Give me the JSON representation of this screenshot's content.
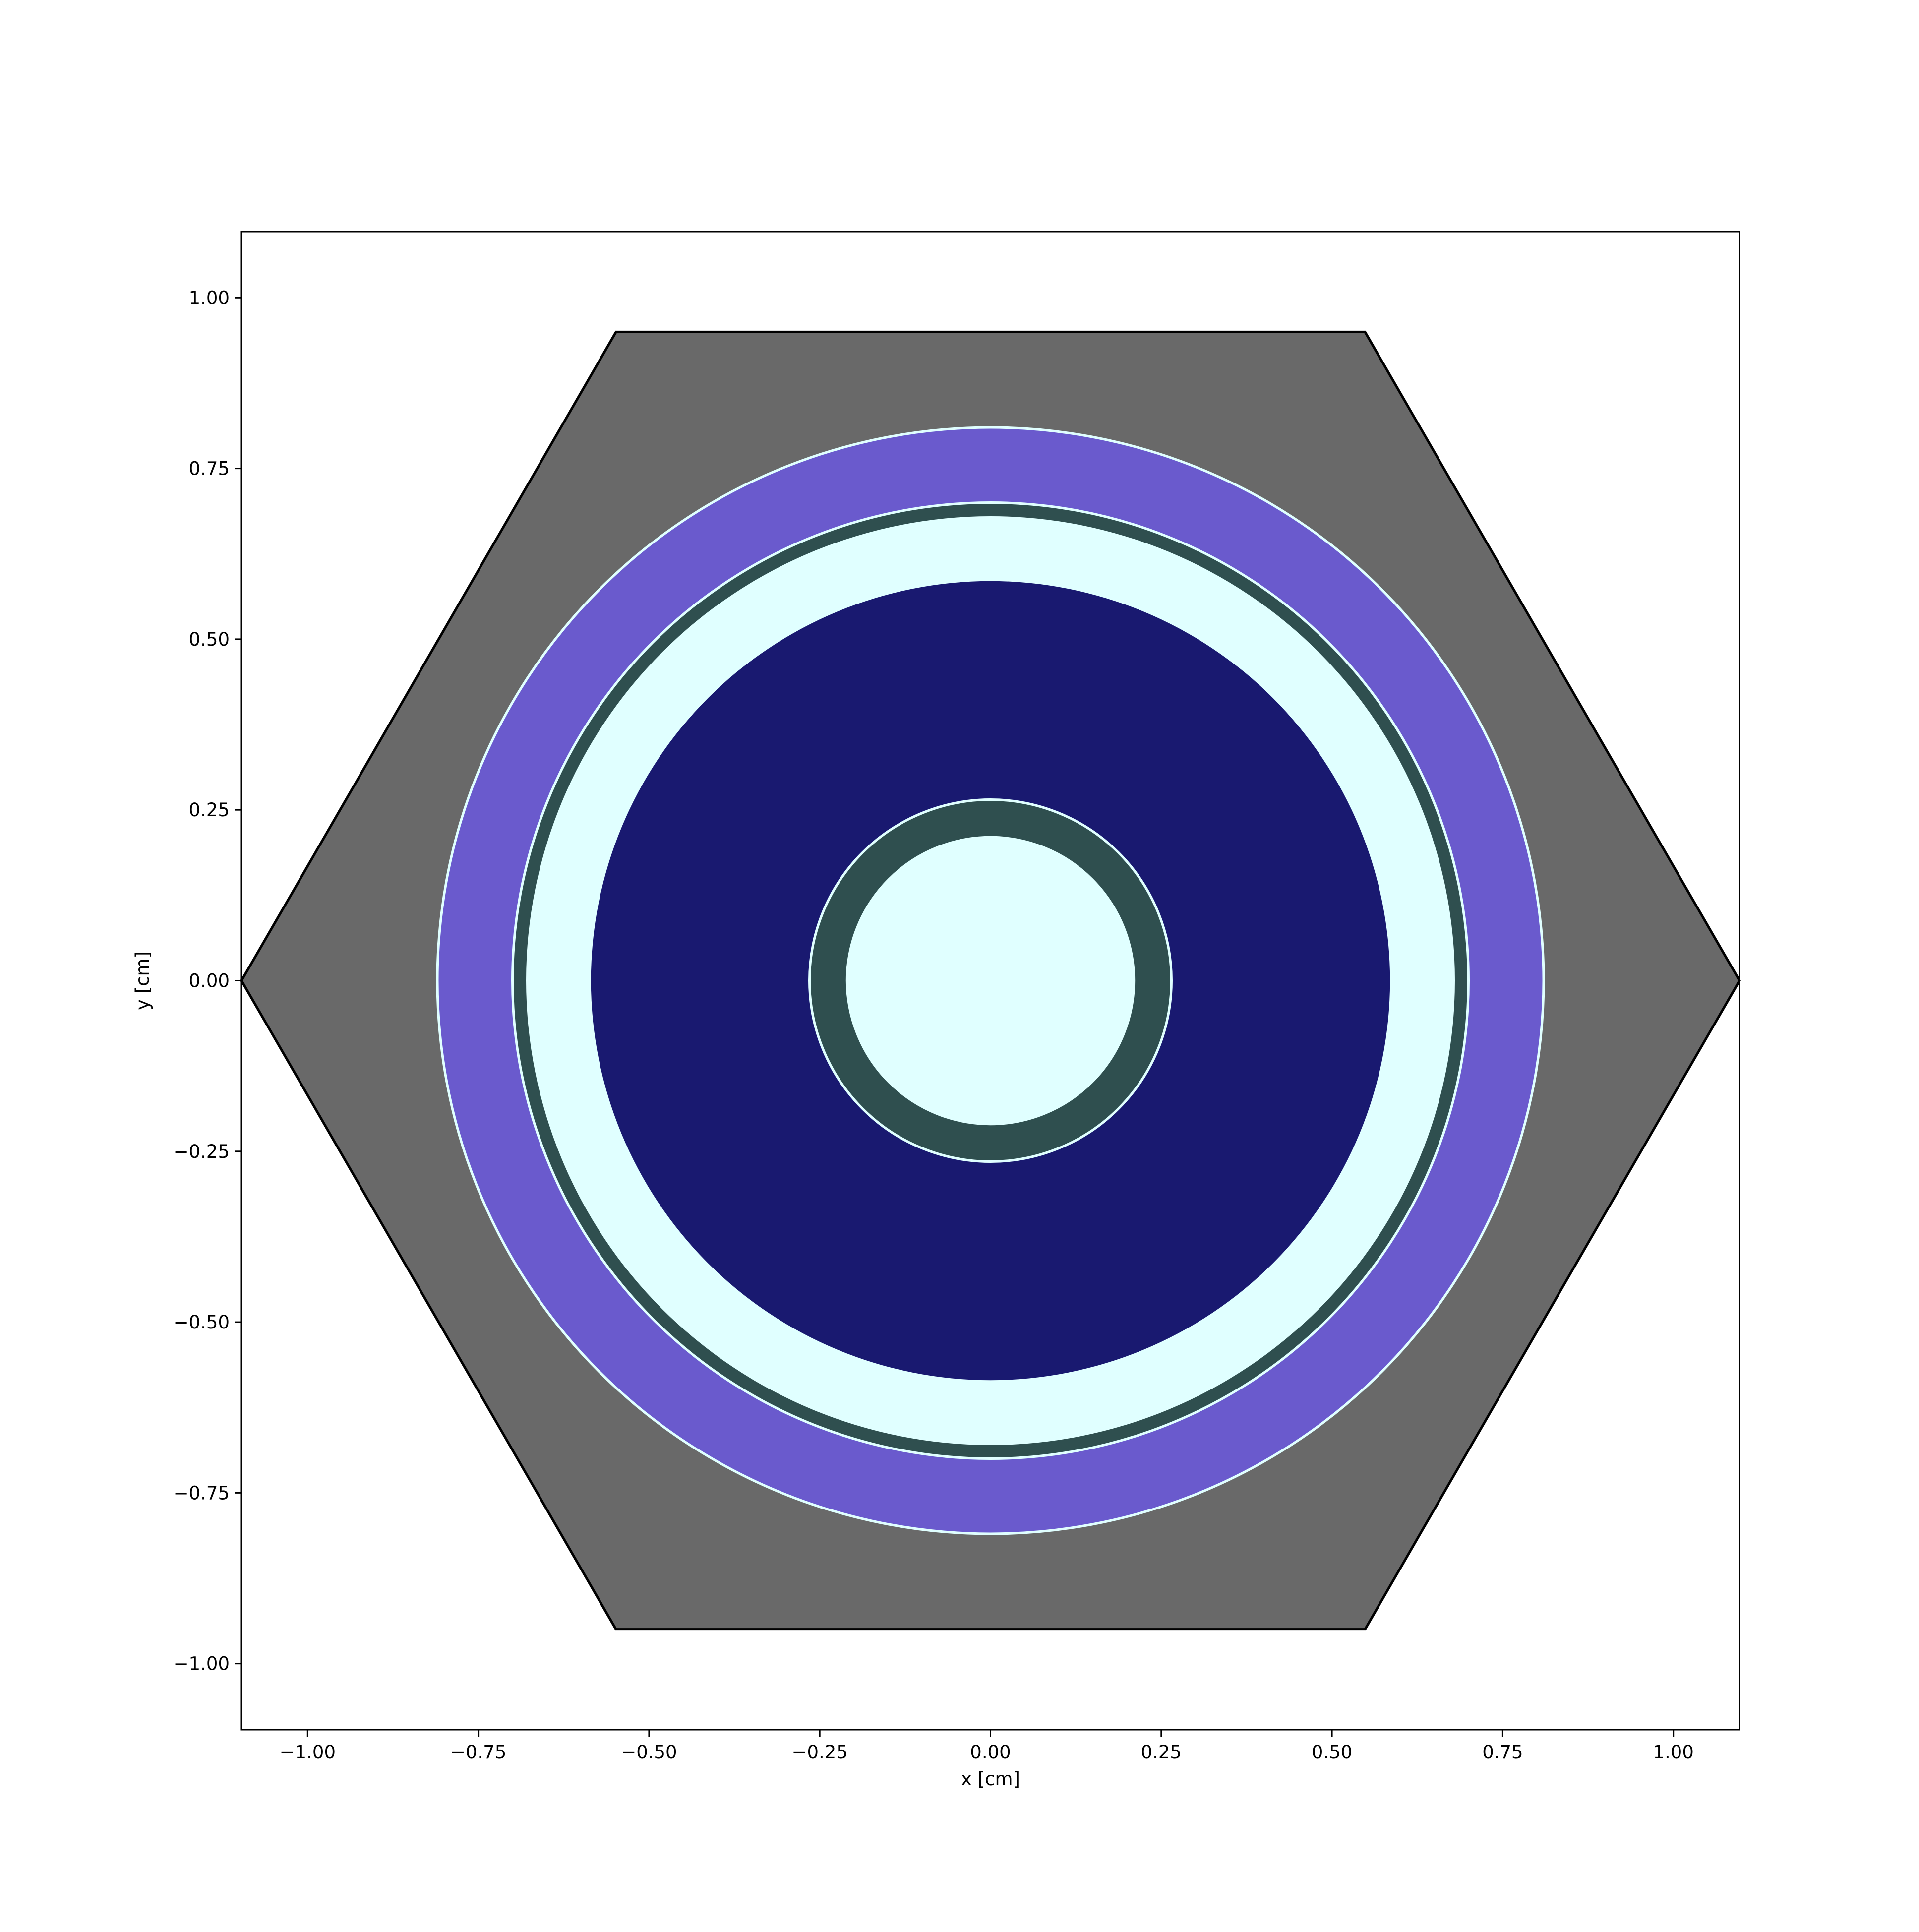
{
  "chart_data": {
    "type": "geometry-slice",
    "xlabel": "x [cm]",
    "ylabel": "y [cm]",
    "xlim": [
      -1.0968,
      1.0968
    ],
    "ylim": [
      -1.0968,
      1.0968
    ],
    "x_ticks": [
      -1.0,
      -0.75,
      -0.5,
      -0.25,
      0.0,
      0.25,
      0.5,
      0.75,
      1.0
    ],
    "x_tick_labels": [
      "−1.00",
      "−0.75",
      "−0.50",
      "−0.25",
      "0.00",
      "0.25",
      "0.50",
      "0.75",
      "1.00"
    ],
    "y_ticks": [
      1.0,
      0.75,
      0.5,
      0.25,
      0.0,
      -0.25,
      -0.5,
      -0.75,
      -1.0
    ],
    "y_tick_labels": [
      "1.00",
      "0.75",
      "0.50",
      "0.25",
      "0.00",
      "−0.25",
      "−0.50",
      "−0.75",
      "−1.00"
    ],
    "hexagon": {
      "vertices": [
        [
          -1.0968,
          0.0
        ],
        [
          -0.5484,
          0.9498
        ],
        [
          0.5484,
          0.9498
        ],
        [
          1.0968,
          0.0
        ],
        [
          0.5484,
          -0.9498
        ],
        [
          -0.5484,
          -0.9498
        ]
      ],
      "fill": "#696969",
      "edge": "#000000"
    },
    "regions": [
      {
        "outer_radius": 0.81,
        "fill": "#6a5acd"
      },
      {
        "outer_radius": 0.7,
        "fill": "#2f4f4f"
      },
      {
        "outer_radius": 0.68,
        "fill": "#e0ffff"
      },
      {
        "outer_radius": 0.585,
        "fill": "#191970"
      },
      {
        "outer_radius": 0.265,
        "fill": "#2f4f4f"
      },
      {
        "outer_radius": 0.21,
        "fill": "#e0ffff"
      }
    ],
    "boundary_color": "#e0ffff",
    "boundary_radii": [
      0.81,
      0.7,
      0.265,
      0.21
    ],
    "background": "#ffffff"
  }
}
